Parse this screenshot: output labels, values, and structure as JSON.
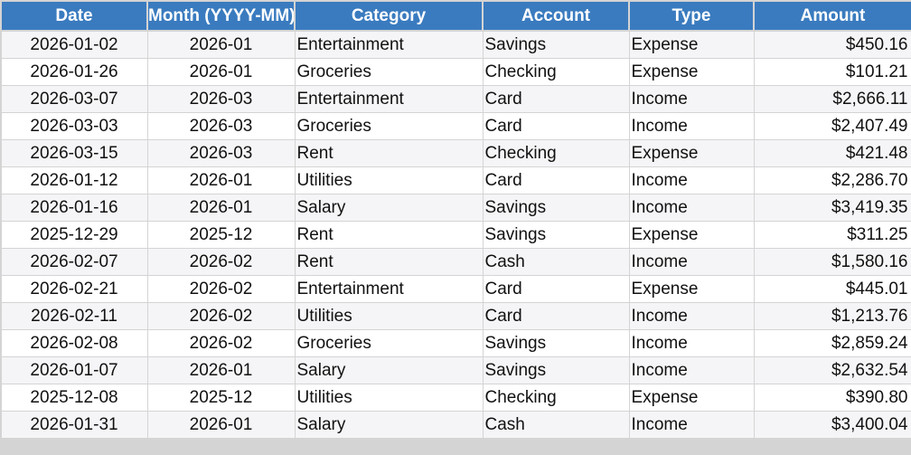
{
  "columns": [
    "Date",
    "Month (YYYY-MM)",
    "Category",
    "Account",
    "Type",
    "Amount"
  ],
  "rows": [
    [
      "2026-01-02",
      "2026-01",
      "Entertainment",
      "Savings",
      "Expense",
      "$450.16"
    ],
    [
      "2026-01-26",
      "2026-01",
      "Groceries",
      "Checking",
      "Expense",
      "$101.21"
    ],
    [
      "2026-03-07",
      "2026-03",
      "Entertainment",
      "Card",
      "Income",
      "$2,666.11"
    ],
    [
      "2026-03-03",
      "2026-03",
      "Groceries",
      "Card",
      "Income",
      "$2,407.49"
    ],
    [
      "2026-03-15",
      "2026-03",
      "Rent",
      "Checking",
      "Expense",
      "$421.48"
    ],
    [
      "2026-01-12",
      "2026-01",
      "Utilities",
      "Card",
      "Income",
      "$2,286.70"
    ],
    [
      "2026-01-16",
      "2026-01",
      "Salary",
      "Savings",
      "Income",
      "$3,419.35"
    ],
    [
      "2025-12-29",
      "2025-12",
      "Rent",
      "Savings",
      "Expense",
      "$311.25"
    ],
    [
      "2026-02-07",
      "2026-02",
      "Rent",
      "Cash",
      "Income",
      "$1,580.16"
    ],
    [
      "2026-02-21",
      "2026-02",
      "Entertainment",
      "Card",
      "Expense",
      "$445.01"
    ],
    [
      "2026-02-11",
      "2026-02",
      "Utilities",
      "Card",
      "Income",
      "$1,213.76"
    ],
    [
      "2026-02-08",
      "2026-02",
      "Groceries",
      "Savings",
      "Income",
      "$2,859.24"
    ],
    [
      "2026-01-07",
      "2026-01",
      "Salary",
      "Savings",
      "Income",
      "$2,632.54"
    ],
    [
      "2025-12-08",
      "2025-12",
      "Utilities",
      "Checking",
      "Expense",
      "$390.80"
    ],
    [
      "2026-01-31",
      "2026-01",
      "Salary",
      "Cash",
      "Income",
      "$3,400.04"
    ]
  ],
  "colors": {
    "header_bg": "#3a7bbf",
    "header_text": "#ffffff",
    "stripe": "#f5f5f7",
    "grid": "#d4d4d4"
  }
}
